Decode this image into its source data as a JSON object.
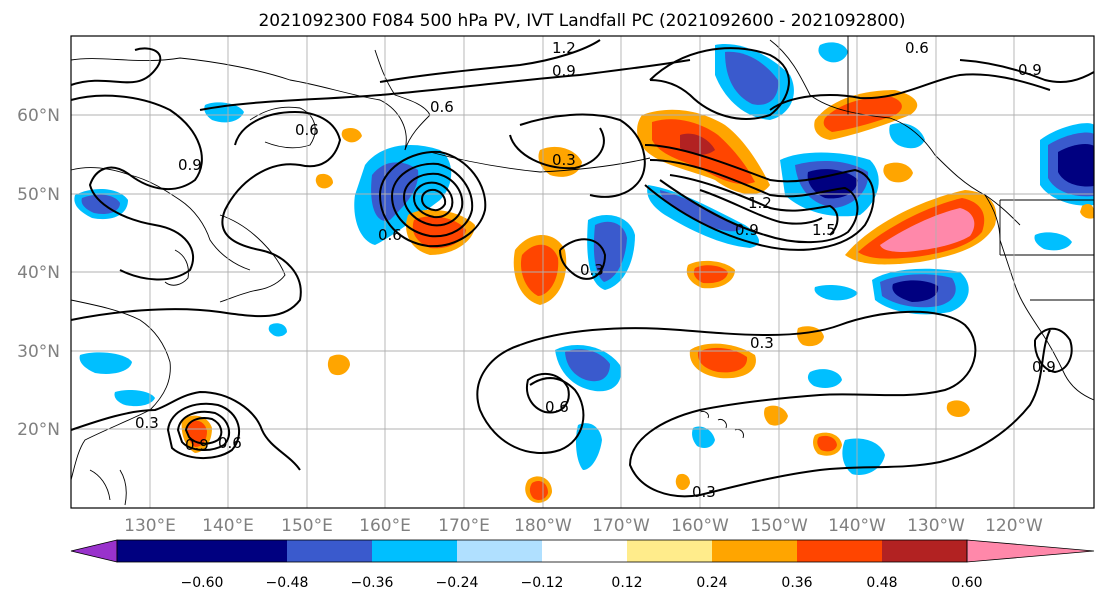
{
  "figure": {
    "title": "2021092300 F084 500 hPa PV, IVT Landfall PC (2021092600 - 2021092800)"
  },
  "map": {
    "lat_labels": [
      "60°N",
      "50°N",
      "40°N",
      "30°N",
      "20°N"
    ],
    "lon_labels": [
      "130°E",
      "140°E",
      "150°E",
      "160°E",
      "170°E",
      "180°W",
      "170°W",
      "160°W",
      "150°W",
      "140°W",
      "130°W",
      "120°W"
    ],
    "contour_labels": [
      "1.2",
      "0.9",
      "0.6",
      "0.6",
      "0.3",
      "0.9",
      "0.6",
      "1.2",
      "0.9",
      "1.5",
      "0.6",
      "0.3",
      "0.3",
      "0.6",
      "0.9",
      "0.3",
      "0.3",
      "0.9",
      "0.6",
      "0.9"
    ]
  },
  "colorbar": {
    "ticks": [
      "−0.60",
      "−0.48",
      "−0.36",
      "−0.24",
      "−0.12",
      "0.12",
      "0.24",
      "0.36",
      "0.48",
      "0.60"
    ],
    "colors": [
      "#9932cc",
      "#000080",
      "#3a5acd",
      "#00bfff",
      "#b0e0ff",
      "#ffffff",
      "#ffec8b",
      "#ffa500",
      "#ff4500",
      "#b22222",
      "#ff88aa"
    ]
  }
}
